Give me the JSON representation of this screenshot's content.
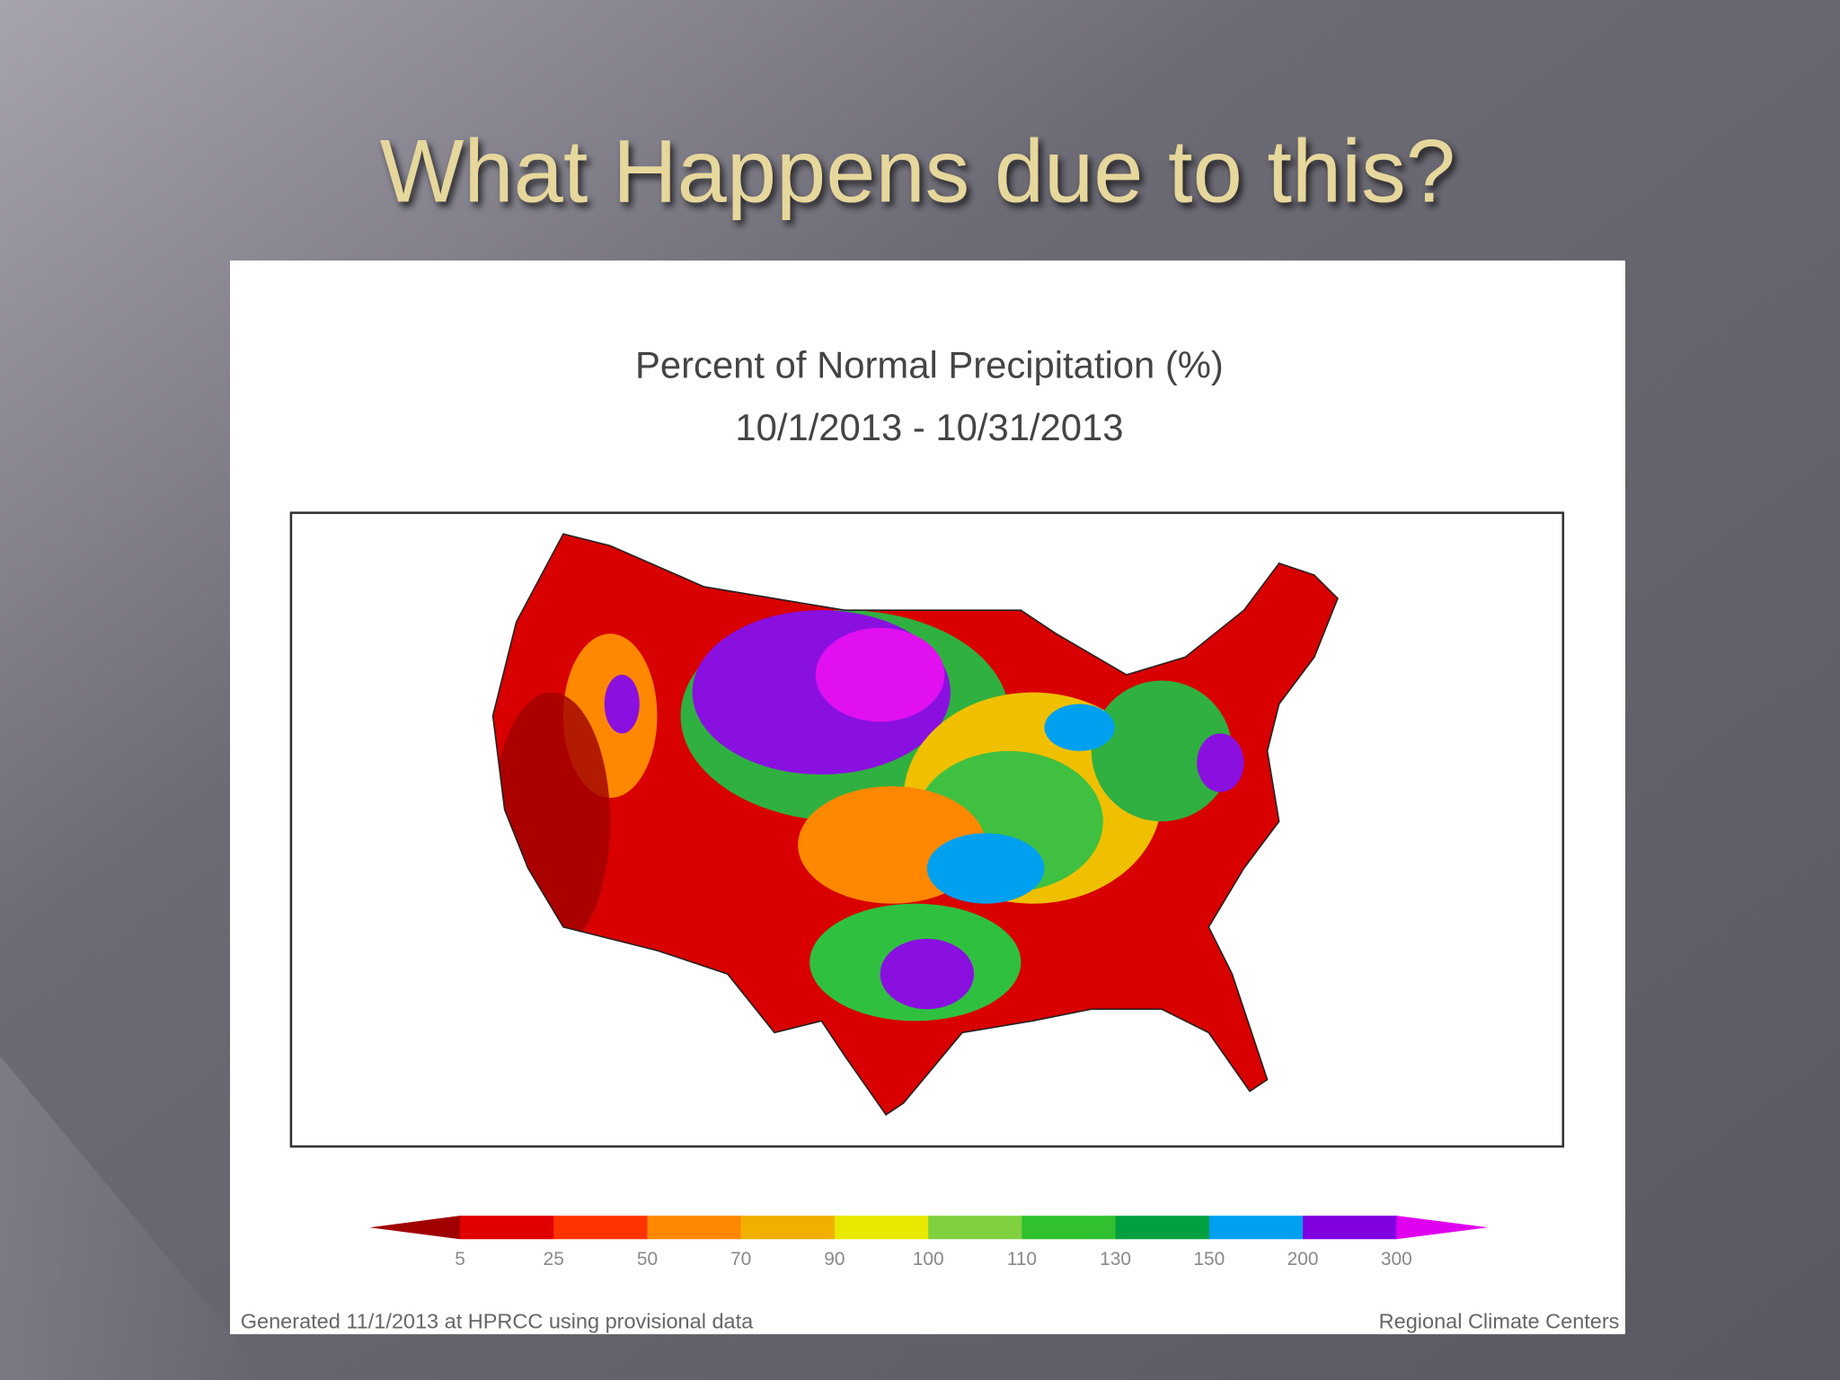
{
  "slide": {
    "title": "What Happens due to this?"
  },
  "map": {
    "title": "Percent of Normal Precipitation (%)",
    "period": "10/1/2013 - 10/31/2013",
    "legend": {
      "labels": [
        "5",
        "25",
        "50",
        "70",
        "90",
        "100",
        "110",
        "130",
        "150",
        "200",
        "300"
      ],
      "colors": [
        "#a00000",
        "#e00000",
        "#ff3300",
        "#ff8800",
        "#f0b000",
        "#e8e800",
        "#80d040",
        "#30c030",
        "#00a040",
        "#00a0f0",
        "#8000e0",
        "#e000f0"
      ]
    },
    "footer_left": "Generated 11/1/2013 at HPRCC using provisional data",
    "footer_right": "Regional Climate Centers"
  }
}
